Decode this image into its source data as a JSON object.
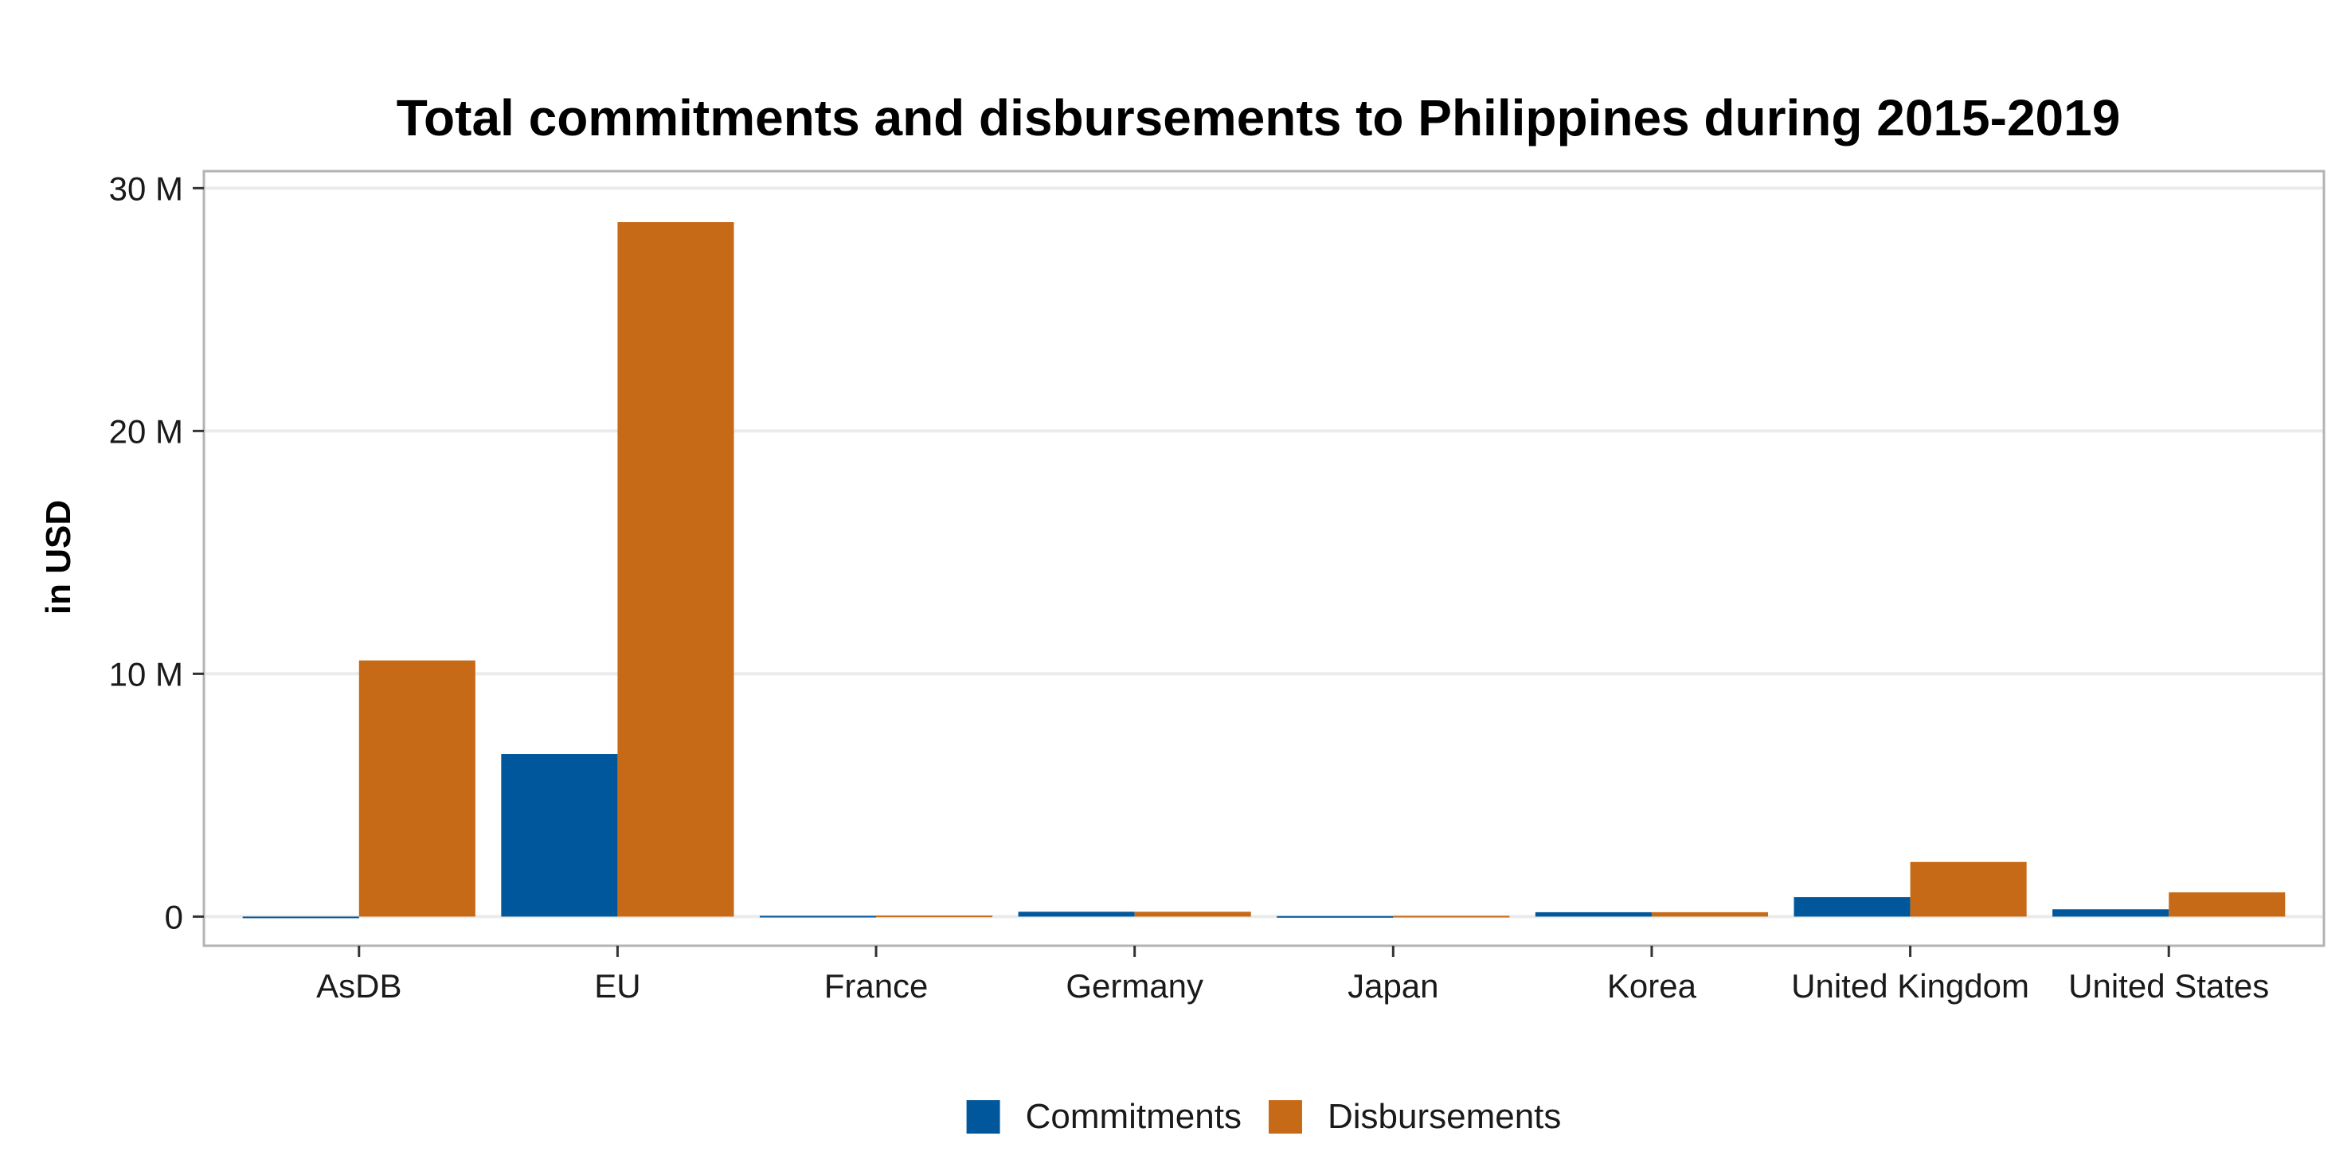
{
  "chart_data": {
    "type": "bar",
    "title": "Total commitments and disbursements to Philippines during 2015-2019",
    "xlabel": "",
    "ylabel": "in USD",
    "categories": [
      "AsDB",
      "EU",
      "France",
      "Germany",
      "Japan",
      "Korea",
      "United Kingdom",
      "United States"
    ],
    "series": [
      {
        "name": "Commitments",
        "color": "#01579B",
        "values": [
          0,
          6700000,
          30000,
          200000,
          20000,
          180000,
          800000,
          300000
        ]
      },
      {
        "name": "Disbursements",
        "color": "#C76A18",
        "values": [
          10550000,
          28600000,
          40000,
          200000,
          30000,
          180000,
          2250000,
          1000000
        ]
      }
    ],
    "ylim": [
      -1200000,
      30700000
    ],
    "yticks": [
      {
        "value": 0,
        "label": "0"
      },
      {
        "value": 10000000,
        "label": "10 M"
      },
      {
        "value": 20000000,
        "label": "20 M"
      },
      {
        "value": 30000000,
        "label": "30 M"
      }
    ],
    "grid": true,
    "legend_position": "bottom"
  }
}
